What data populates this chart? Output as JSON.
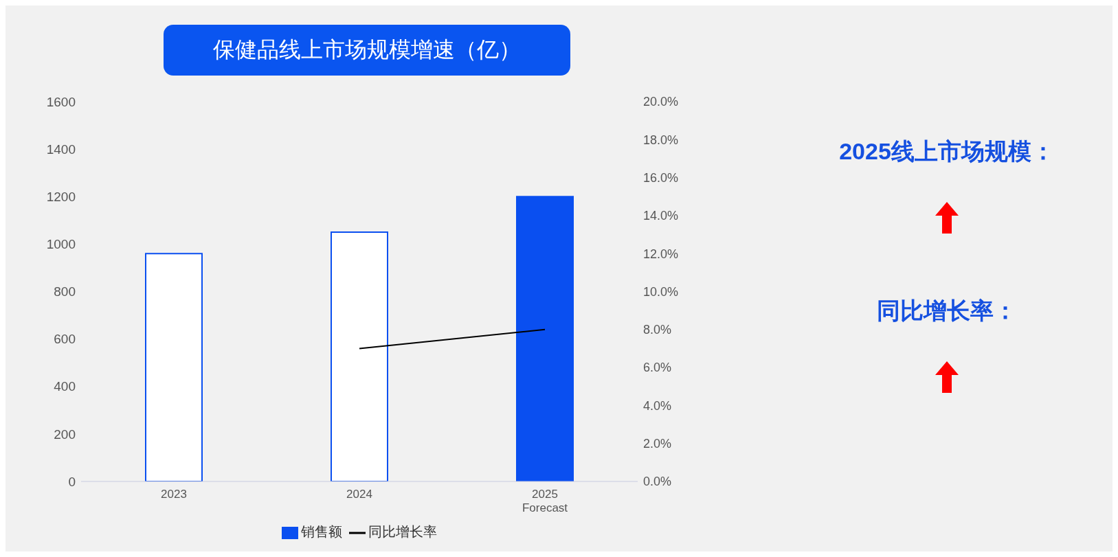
{
  "chart_data": {
    "type": "bar",
    "title": "保健品线上市场规模增速（亿）",
    "categories": [
      "2023",
      "2024",
      "2025\nForecast"
    ],
    "series": [
      {
        "name": "销售额",
        "color": "#0a4ff0",
        "colors": [
          "#ffffff",
          "#ffffff",
          "#0a4ff0"
        ],
        "values": [
          960,
          1050,
          1200
        ]
      },
      {
        "name": "同比增长率",
        "type": "line",
        "axis": "y2",
        "color": "#000000",
        "values": [
          null,
          7.0,
          8.0
        ]
      }
    ],
    "ylim": [
      0,
      1600
    ],
    "yticks": [
      0,
      200,
      400,
      600,
      800,
      1000,
      1200,
      1400,
      1600
    ],
    "y2lim": [
      0,
      20
    ],
    "y2ticks": [
      {
        "value": 0,
        "label": "0.0%"
      },
      {
        "value": 2,
        "label": "2.0%"
      },
      {
        "value": 4,
        "label": "4.0%"
      },
      {
        "value": 6,
        "label": "6.0%"
      },
      {
        "value": 8,
        "label": "8.0%"
      },
      {
        "value": 10,
        "label": "10.0%"
      },
      {
        "value": 12,
        "label": "12.0%"
      },
      {
        "value": 14,
        "label": "14.0%"
      },
      {
        "value": 16,
        "label": "16.0%"
      },
      {
        "value": 18,
        "label": "18.0%"
      },
      {
        "value": 20,
        "label": "20.0%"
      }
    ],
    "legend": "bottom",
    "grid": false,
    "marker": "none",
    "annotations": [
      "2025线上市场规模：",
      "同比增长率："
    ]
  }
}
